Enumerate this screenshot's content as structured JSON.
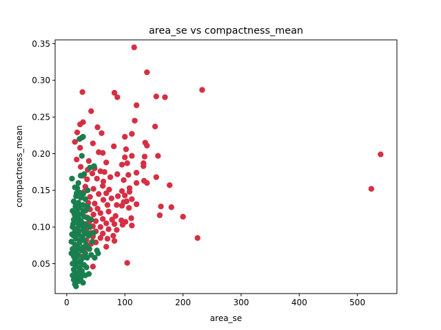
{
  "chart_data": {
    "type": "scatter",
    "title": "area_se vs compactness_mean",
    "xlabel": "area_se",
    "ylabel": "compactness_mean",
    "xlim": [
      -20,
      568
    ],
    "ylim": [
      0.0092,
      0.3552
    ],
    "xticks": [
      0,
      100,
      200,
      300,
      400,
      500
    ],
    "yticks": [
      0.05,
      0.1,
      0.15,
      0.2,
      0.25,
      0.3,
      0.35
    ],
    "xtick_labels": [
      "0",
      "100",
      "200",
      "300",
      "400",
      "500"
    ],
    "ytick_labels": [
      "0.05",
      "0.10",
      "0.15",
      "0.20",
      "0.25",
      "0.30",
      "0.35"
    ],
    "grid": false,
    "legend": "none",
    "series": [
      {
        "color": "#d62f43",
        "points": [
          [
            116,
            0.345
          ],
          [
            138,
            0.311
          ],
          [
            233,
            0.287
          ],
          [
            27,
            0.284
          ],
          [
            82,
            0.283
          ],
          [
            87,
            0.277
          ],
          [
            154,
            0.278
          ],
          [
            169,
            0.277
          ],
          [
            120,
            0.266
          ],
          [
            42,
            0.258
          ],
          [
            28,
            0.243
          ],
          [
            23,
            0.24
          ],
          [
            53,
            0.236
          ],
          [
            152,
            0.237
          ],
          [
            18,
            0.229
          ],
          [
            60,
            0.228
          ],
          [
            112,
            0.227
          ],
          [
            117,
            0.245
          ],
          [
            100,
            0.223
          ],
          [
            14,
            0.216
          ],
          [
            26,
            0.222
          ],
          [
            135,
            0.215
          ],
          [
            45,
            0.214
          ],
          [
            138,
            0.211
          ],
          [
            81,
            0.21
          ],
          [
            23,
            0.208
          ],
          [
            102,
            0.206
          ],
          [
            55,
            0.202
          ],
          [
            62,
            0.201
          ],
          [
            157,
            0.197
          ],
          [
            134,
            0.196
          ],
          [
            100,
            0.195
          ],
          [
            112,
            0.197
          ],
          [
            17,
            0.192
          ],
          [
            38,
            0.19
          ],
          [
            132,
            0.187
          ],
          [
            104,
            0.187
          ],
          [
            68,
            0.188
          ],
          [
            95,
            0.185
          ],
          [
            132,
            0.183
          ],
          [
            24,
            0.182
          ],
          [
            48,
            0.18
          ],
          [
            36,
            0.178
          ],
          [
            58,
            0.176
          ],
          [
            65,
            0.175
          ],
          [
            44,
            0.173
          ],
          [
            87,
            0.172
          ],
          [
            120,
            0.174
          ],
          [
            28,
            0.17
          ],
          [
            106,
            0.171
          ],
          [
            75,
            0.168
          ],
          [
            52,
            0.166
          ],
          [
            35,
            0.165
          ],
          [
            98,
            0.164
          ],
          [
            133,
            0.163
          ],
          [
            63,
            0.162
          ],
          [
            138,
            0.16
          ],
          [
            120,
            0.16
          ],
          [
            177,
            0.157
          ],
          [
            62,
            0.156
          ],
          [
            154,
            0.168
          ],
          [
            540,
            0.199
          ],
          [
            524,
            0.152
          ],
          [
            108,
            0.153
          ],
          [
            32,
            0.155
          ],
          [
            46,
            0.152
          ],
          [
            73,
            0.151
          ],
          [
            95,
            0.149
          ],
          [
            108,
            0.148
          ],
          [
            30,
            0.148
          ],
          [
            68,
            0.146
          ],
          [
            55,
            0.145
          ],
          [
            100,
            0.143
          ],
          [
            88,
            0.142
          ],
          [
            40,
            0.141
          ],
          [
            77,
            0.139
          ],
          [
            112,
            0.138
          ],
          [
            63,
            0.137
          ],
          [
            103,
            0.135
          ],
          [
            98,
            0.134
          ],
          [
            120,
            0.131
          ],
          [
            48,
            0.132
          ],
          [
            37,
            0.133
          ],
          [
            86,
            0.13
          ],
          [
            70,
            0.13
          ],
          [
            95,
            0.129
          ],
          [
            162,
            0.128
          ],
          [
            180,
            0.127
          ],
          [
            107,
            0.126
          ],
          [
            53,
            0.125
          ],
          [
            40,
            0.124
          ],
          [
            32,
            0.122
          ],
          [
            72,
            0.121
          ],
          [
            58,
            0.119
          ],
          [
            160,
            0.116
          ],
          [
            46,
            0.117
          ],
          [
            84,
            0.115
          ],
          [
            200,
            0.114
          ],
          [
            35,
            0.113
          ],
          [
            111,
            0.112
          ],
          [
            62,
            0.111
          ],
          [
            78,
            0.11
          ],
          [
            94,
            0.109
          ],
          [
            50,
            0.108
          ],
          [
            101,
            0.107
          ],
          [
            38,
            0.106
          ],
          [
            68,
            0.105
          ],
          [
            82,
            0.104
          ],
          [
            96,
            0.103
          ],
          [
            112,
            0.102
          ],
          [
            45,
            0.101
          ],
          [
            58,
            0.1
          ],
          [
            34,
            0.098
          ],
          [
            72,
            0.097
          ],
          [
            86,
            0.096
          ],
          [
            50,
            0.094
          ],
          [
            42,
            0.092
          ],
          [
            62,
            0.091
          ],
          [
            38,
            0.089
          ],
          [
            80,
            0.088
          ],
          [
            225,
            0.085
          ],
          [
            45,
            0.087
          ],
          [
            58,
            0.085
          ],
          [
            70,
            0.084
          ],
          [
            34,
            0.082
          ],
          [
            82,
            0.081
          ],
          [
            50,
            0.079
          ],
          [
            42,
            0.077
          ],
          [
            68,
            0.073
          ],
          [
            35,
            0.072
          ],
          [
            104,
            0.051
          ],
          [
            45,
            0.046
          ],
          [
            28,
            0.06
          ],
          [
            30,
            0.068
          ]
        ]
      },
      {
        "color": "#1a7f4e",
        "points": [
          [
            28,
            0.223
          ],
          [
            22,
            0.22
          ],
          [
            26,
            0.197
          ],
          [
            40,
            0.181
          ],
          [
            47,
            0.183
          ],
          [
            30,
            0.172
          ],
          [
            24,
            0.17
          ],
          [
            9,
            0.166
          ],
          [
            20,
            0.16
          ],
          [
            14,
            0.154
          ],
          [
            18,
            0.153
          ],
          [
            36,
            0.15
          ],
          [
            22,
            0.147
          ],
          [
            28,
            0.145
          ],
          [
            16,
            0.142
          ],
          [
            24,
            0.14
          ],
          [
            32,
            0.138
          ],
          [
            12,
            0.135
          ],
          [
            20,
            0.133
          ],
          [
            28,
            0.13
          ],
          [
            15,
            0.128
          ],
          [
            22,
            0.126
          ],
          [
            34,
            0.124
          ],
          [
            10,
            0.122
          ],
          [
            18,
            0.12
          ],
          [
            26,
            0.118
          ],
          [
            14,
            0.116
          ],
          [
            30,
            0.114
          ],
          [
            20,
            0.112
          ],
          [
            12,
            0.11
          ],
          [
            24,
            0.108
          ],
          [
            16,
            0.106
          ],
          [
            32,
            0.104
          ],
          [
            22,
            0.102
          ],
          [
            10,
            0.1
          ],
          [
            18,
            0.098
          ],
          [
            28,
            0.096
          ],
          [
            14,
            0.094
          ],
          [
            36,
            0.092
          ],
          [
            20,
            0.09
          ],
          [
            12,
            0.088
          ],
          [
            26,
            0.086
          ],
          [
            16,
            0.084
          ],
          [
            30,
            0.082
          ],
          [
            8,
            0.08
          ],
          [
            22,
            0.078
          ],
          [
            14,
            0.076
          ],
          [
            34,
            0.074
          ],
          [
            18,
            0.072
          ],
          [
            10,
            0.07
          ],
          [
            26,
            0.068
          ],
          [
            16,
            0.066
          ],
          [
            32,
            0.064
          ],
          [
            20,
            0.062
          ],
          [
            12,
            0.06
          ],
          [
            28,
            0.058
          ],
          [
            14,
            0.056
          ],
          [
            24,
            0.054
          ],
          [
            18,
            0.052
          ],
          [
            10,
            0.05
          ],
          [
            30,
            0.048
          ],
          [
            16,
            0.046
          ],
          [
            22,
            0.044
          ],
          [
            12,
            0.042
          ],
          [
            26,
            0.04
          ],
          [
            14,
            0.038
          ],
          [
            20,
            0.036
          ],
          [
            10,
            0.034
          ],
          [
            32,
            0.034
          ],
          [
            16,
            0.032
          ],
          [
            24,
            0.03
          ],
          [
            12,
            0.028
          ],
          [
            20,
            0.026
          ],
          [
            28,
            0.024
          ],
          [
            14,
            0.022
          ],
          [
            16,
            0.019
          ],
          [
            38,
            0.036
          ],
          [
            42,
            0.062
          ],
          [
            44,
            0.08
          ],
          [
            40,
            0.1
          ],
          [
            46,
            0.092
          ],
          [
            52,
            0.068
          ],
          [
            48,
            0.058
          ],
          [
            54,
            0.064
          ],
          [
            38,
            0.088
          ],
          [
            42,
            0.11
          ],
          [
            36,
            0.128
          ],
          [
            34,
            0.045
          ],
          [
            8,
            0.064
          ],
          [
            9,
            0.09
          ],
          [
            11,
            0.104
          ],
          [
            13,
            0.118
          ],
          [
            15,
            0.132
          ],
          [
            17,
            0.146
          ],
          [
            19,
            0.125
          ],
          [
            21,
            0.094
          ],
          [
            23,
            0.07
          ],
          [
            25,
            0.05
          ],
          [
            27,
            0.036
          ],
          [
            29,
            0.122
          ],
          [
            31,
            0.1
          ],
          [
            33,
            0.076
          ],
          [
            35,
            0.058
          ],
          [
            37,
            0.112
          ],
          [
            39,
            0.07
          ],
          [
            20,
            0.116
          ],
          [
            24,
            0.082
          ],
          [
            18,
            0.06
          ],
          [
            22,
            0.04
          ],
          [
            26,
            0.106
          ],
          [
            30,
            0.09
          ],
          [
            28,
            0.072
          ]
        ]
      }
    ]
  }
}
